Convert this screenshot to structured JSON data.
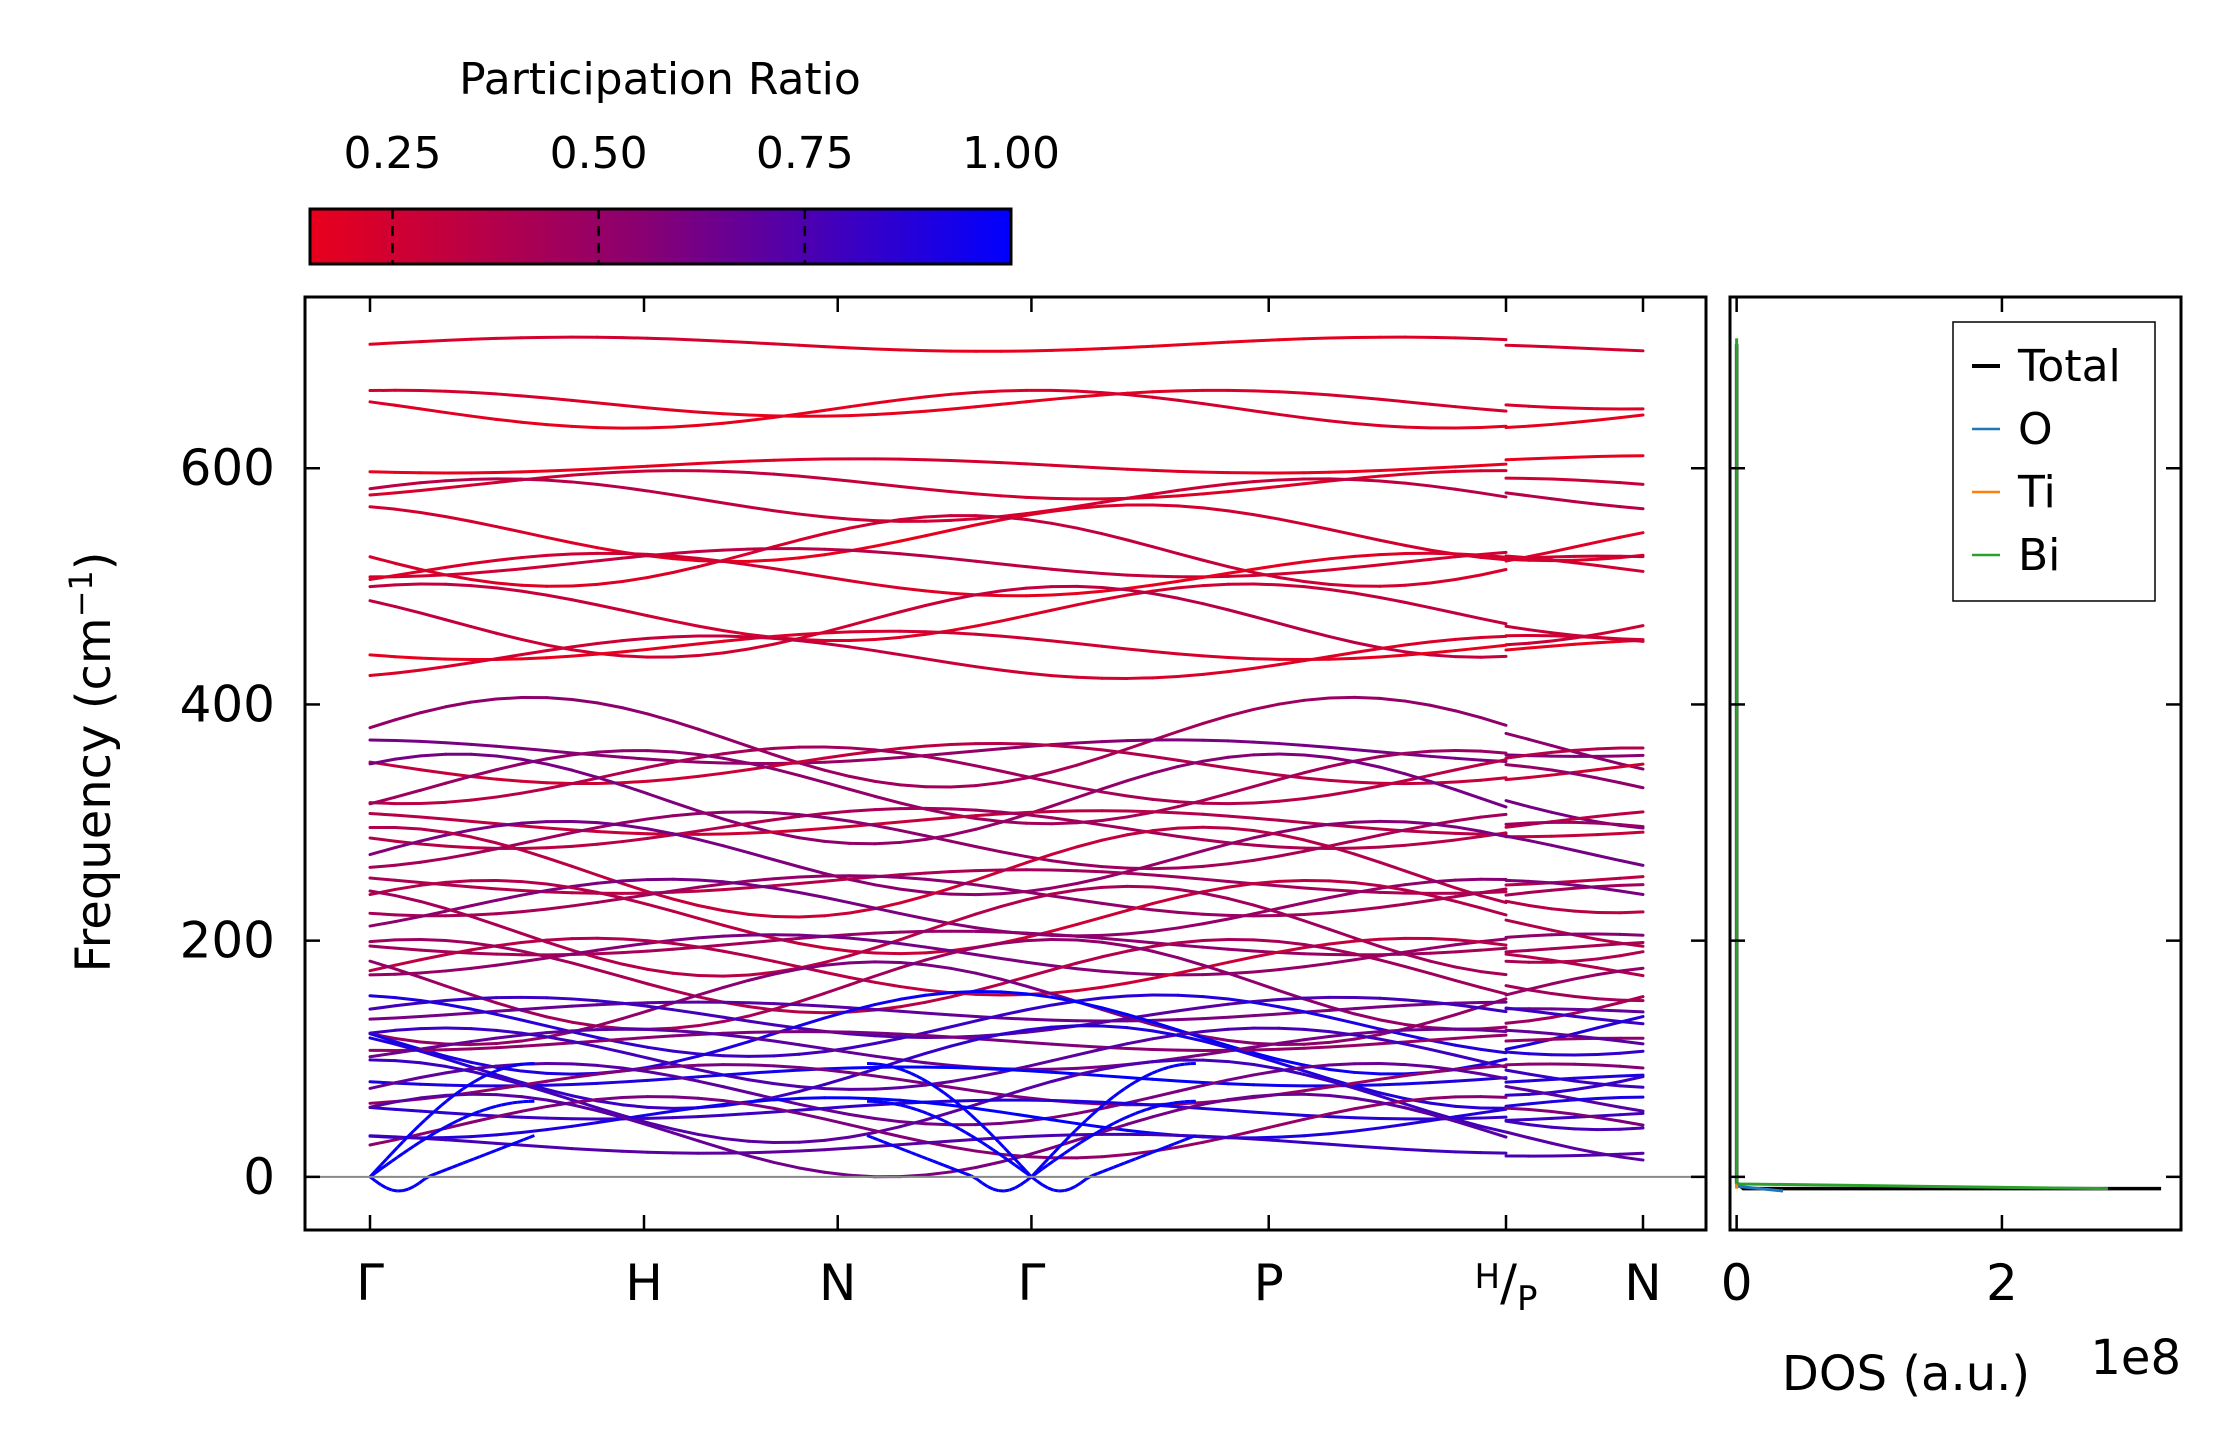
{
  "chart_data": [
    {
      "type": "line",
      "subtype": "phonon-band-structure",
      "xlabel": "",
      "ylabel": "Frequency (cm",
      "ylabel_exponent": "−1",
      "ylabel_close": ")",
      "ylim": [
        -45,
        745
      ],
      "yticks": [
        0,
        200,
        400,
        600
      ],
      "k_path": [
        {
          "label": "Γ",
          "x": 0.0
        },
        {
          "label": "H",
          "x": 1.0
        },
        {
          "label": "N",
          "x": 1.707
        },
        {
          "label": "Γ",
          "x": 2.414
        },
        {
          "label": "P",
          "x": 3.28
        },
        {
          "label": "H",
          "label_sub": "P",
          "x": 4.146
        },
        {
          "label": "N",
          "x": 4.646
        }
      ],
      "path_break_after": 4.146,
      "zero_line": true,
      "colorbar": {
        "title": "Participation Ratio",
        "range": [
          0.15,
          1.0
        ],
        "ticks": [
          "0.25",
          "0.50",
          "0.75",
          "1.00"
        ],
        "tick_values": [
          0.25,
          0.5,
          0.75,
          1.0
        ],
        "color_low": "#e8001c",
        "color_mid": "#8a0070",
        "color_high": "#0000ff"
      },
      "acoustic_branches": [
        {
          "start": 0,
          "end": 35,
          "min": -12,
          "shape": "dip"
        },
        {
          "start": 0,
          "end": 64,
          "min": 0,
          "shape": "rise"
        },
        {
          "start": 0,
          "end": 96,
          "min": 0,
          "shape": "rise"
        }
      ],
      "optical_branch_sample_frequencies": [
        705,
        655,
        650,
        602,
        586,
        573,
        545,
        530,
        520,
        510,
        478,
        470,
        450,
        440,
        368,
        360,
        350,
        340,
        330,
        320,
        300,
        295,
        285,
        270,
        258,
        250,
        238,
        228,
        220,
        208,
        198,
        188,
        178,
        170,
        163,
        147,
        140,
        135,
        128,
        122,
        115,
        108,
        100,
        93,
        85,
        78,
        70,
        64,
        57,
        50,
        42,
        35,
        28
      ]
    },
    {
      "type": "line",
      "subtype": "density-of-states",
      "xlabel": "DOS (a.u.)",
      "x_offset_label": "1e8",
      "xlim": [
        -0.05,
        3.35
      ],
      "xticks": [
        0,
        2
      ],
      "xtick_labels": [
        "0",
        "2"
      ],
      "ylim": [
        -45,
        745
      ],
      "series": [
        {
          "name": "Total",
          "color": "#000000",
          "x": [
            0.0,
            0.0,
            0.0,
            0.05,
            2.9,
            3.2
          ],
          "y": [
            705,
            700,
            -5,
            -10,
            -10,
            -10
          ]
        },
        {
          "name": "O",
          "color": "#1f77b4",
          "x": [
            0.0,
            0.0,
            0.35
          ],
          "y": [
            -5,
            -8,
            -12
          ]
        },
        {
          "name": "Ti",
          "color": "#ff7f0e",
          "x": [
            0.0,
            0.0
          ],
          "y": [
            -5,
            -10
          ]
        },
        {
          "name": "Bi",
          "color": "#2ca02c",
          "x": [
            0.0,
            0.0,
            0.0,
            0.02,
            2.8
          ],
          "y": [
            710,
            705,
            -5,
            -6,
            -10
          ]
        }
      ],
      "legend_position": "top-right"
    }
  ]
}
